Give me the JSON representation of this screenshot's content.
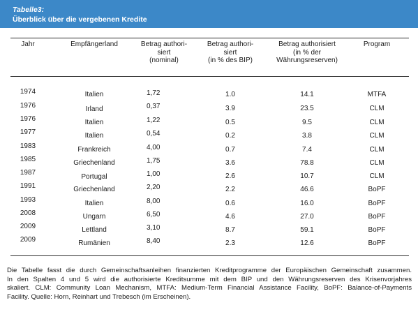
{
  "header": {
    "label": "Tabelle3:",
    "title": "Überblick über die vergebenen Kredite"
  },
  "columns": {
    "jahr": "Jahr",
    "land": "Empfängerland",
    "nominal": [
      "Betrag authori-",
      "siert",
      "(nominal)"
    ],
    "bip": [
      "Betrag authori-",
      "siert",
      "(in % des BIP)"
    ],
    "reserven": [
      "Betrag authorisiert",
      "(in % der",
      "Währungsreserven)"
    ],
    "program": "Program"
  },
  "rows": [
    {
      "jahr": "1974",
      "land": "Italien",
      "nominal": "1,72",
      "bip": "1.0",
      "reserven": "14.1",
      "program": "MTFA"
    },
    {
      "jahr": "1976",
      "land": "Irland",
      "nominal": "0,37",
      "bip": "3.9",
      "reserven": "23.5",
      "program": "CLM"
    },
    {
      "jahr": "1976",
      "land": "Italien",
      "nominal": "1,22",
      "bip": "0.5",
      "reserven": "9.5",
      "program": "CLM"
    },
    {
      "jahr": "1977",
      "land": "Italien",
      "nominal": "0,54",
      "bip": "0.2",
      "reserven": "3.8",
      "program": "CLM"
    },
    {
      "jahr": "1983",
      "land": "Frankreich",
      "nominal": "4,00",
      "bip": "0.7",
      "reserven": "7.4",
      "program": "CLM"
    },
    {
      "jahr": "1985",
      "land": "Griechenland",
      "nominal": "1,75",
      "bip": "3.6",
      "reserven": "78.8",
      "program": "CLM"
    },
    {
      "jahr": "1987",
      "land": "Portugal",
      "nominal": "1,00",
      "bip": "2.6",
      "reserven": "10.7",
      "program": "CLM"
    },
    {
      "jahr": "1991",
      "land": "Griechenland",
      "nominal": "2,20",
      "bip": "2.2",
      "reserven": "46.6",
      "program": "BoPF"
    },
    {
      "jahr": "1993",
      "land": "Italien",
      "nominal": "8,00",
      "bip": "0.6",
      "reserven": "16.0",
      "program": "BoPF"
    },
    {
      "jahr": "2008",
      "land": "Ungarn",
      "nominal": "6,50",
      "bip": "4.6",
      "reserven": "27.0",
      "program": "BoPF"
    },
    {
      "jahr": "2009",
      "land": "Lettland",
      "nominal": "3,10",
      "bip": "8.7",
      "reserven": "59.1",
      "program": "BoPF"
    },
    {
      "jahr": "2009",
      "land": "Rumänien",
      "nominal": "8,40",
      "bip": "2.3",
      "reserven": "12.6",
      "program": "BoPF"
    }
  ],
  "footnote": [
    "Die Tabelle fasst die durch Gemeinschaftsanleihen finanzierten Kreditprogramme der Europäischen Gemeinschaft zusammen.",
    "In den Spalten 4 und 5 wird die authorisierte Kreditsumme mit dem BIP und den Währungsreserven des Krisenvorjahres",
    "skaliert. CLM: Community Loan Mechanism, MTFA: Medium-Term Financial Assistance Facility, BoPF: Balance-of-Payments",
    "Facility. Quelle: Horn, Reinhart und Trebesch (im Erscheinen)."
  ],
  "colors": {
    "header_bg": "#3c88c8",
    "header_text": "#ffffff",
    "rule": "#2b2b2b",
    "text": "#1a1a1a"
  }
}
